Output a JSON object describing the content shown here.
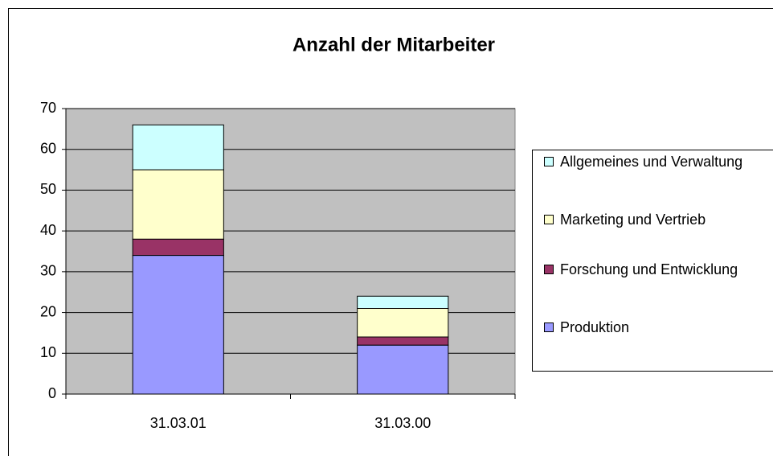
{
  "chart_data": {
    "type": "stacked_bar",
    "title": "Anzahl der Mitarbeiter",
    "categories": [
      "31.03.01",
      "31.03.00"
    ],
    "series": [
      {
        "name": "Produktion",
        "color": "#9999ff",
        "values": [
          34,
          12
        ]
      },
      {
        "name": "Forschung und Entwicklung",
        "color": "#993366",
        "values": [
          4,
          2
        ]
      },
      {
        "name": "Marketing und Vertrieb",
        "color": "#ffffcc",
        "values": [
          17,
          7
        ]
      },
      {
        "name": "Allgemeines und Verwaltung",
        "color": "#ccffff",
        "values": [
          11,
          3
        ]
      }
    ],
    "ylim": [
      0,
      70
    ],
    "yticks": [
      0,
      10,
      20,
      30,
      40,
      50,
      60,
      70
    ],
    "grid": true,
    "plot_background": "#c0c0c0",
    "legend": "right"
  }
}
